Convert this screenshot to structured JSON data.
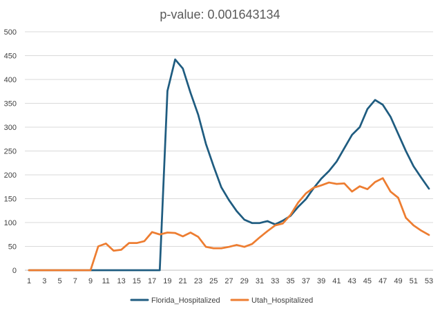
{
  "chart_data": {
    "type": "line",
    "title": "p-value: 0.001643134",
    "xlabel": "",
    "ylabel": "",
    "ylim": [
      0,
      500
    ],
    "yticks": [
      0,
      50,
      100,
      150,
      200,
      250,
      300,
      350,
      400,
      450,
      500
    ],
    "x": [
      1,
      2,
      3,
      4,
      5,
      6,
      7,
      8,
      9,
      10,
      11,
      12,
      13,
      14,
      15,
      16,
      17,
      18,
      19,
      20,
      21,
      22,
      23,
      24,
      25,
      26,
      27,
      28,
      29,
      30,
      31,
      32,
      33,
      34,
      35,
      36,
      37,
      38,
      39,
      40,
      41,
      42,
      43,
      44,
      45,
      46,
      47,
      48,
      49,
      50,
      51,
      52,
      53
    ],
    "xtick_labels": [
      "1",
      "3",
      "5",
      "7",
      "9",
      "11",
      "13",
      "15",
      "17",
      "19",
      "21",
      "23",
      "25",
      "27",
      "29",
      "31",
      "33",
      "35",
      "37",
      "39",
      "41",
      "43",
      "45",
      "47",
      "49",
      "51",
      "53"
    ],
    "grid": true,
    "legend_position": "bottom",
    "series": [
      {
        "name": "Florida_Hospitalized",
        "color": "#1f5c80",
        "values": [
          0,
          0,
          0,
          0,
          0,
          0,
          0,
          0,
          0,
          0,
          0,
          0,
          0,
          0,
          0,
          0,
          0,
          0,
          376,
          442,
          423,
          372,
          326,
          265,
          218,
          174,
          147,
          124,
          106,
          99,
          99,
          103,
          96,
          104,
          114,
          133,
          149,
          172,
          192,
          208,
          228,
          256,
          284,
          300,
          338,
          357,
          347,
          322,
          286,
          250,
          218,
          194,
          171
        ]
      },
      {
        "name": "Utah_Hospitalized",
        "color": "#ed7d31",
        "values": [
          0,
          0,
          0,
          0,
          0,
          0,
          0,
          0,
          0,
          50,
          56,
          41,
          43,
          57,
          57,
          61,
          80,
          75,
          79,
          78,
          71,
          79,
          70,
          49,
          46,
          46,
          49,
          53,
          49,
          55,
          69,
          82,
          94,
          98,
          116,
          142,
          161,
          173,
          178,
          184,
          181,
          182,
          165,
          176,
          170,
          185,
          193,
          165,
          152,
          110,
          94,
          83,
          74
        ]
      }
    ]
  }
}
